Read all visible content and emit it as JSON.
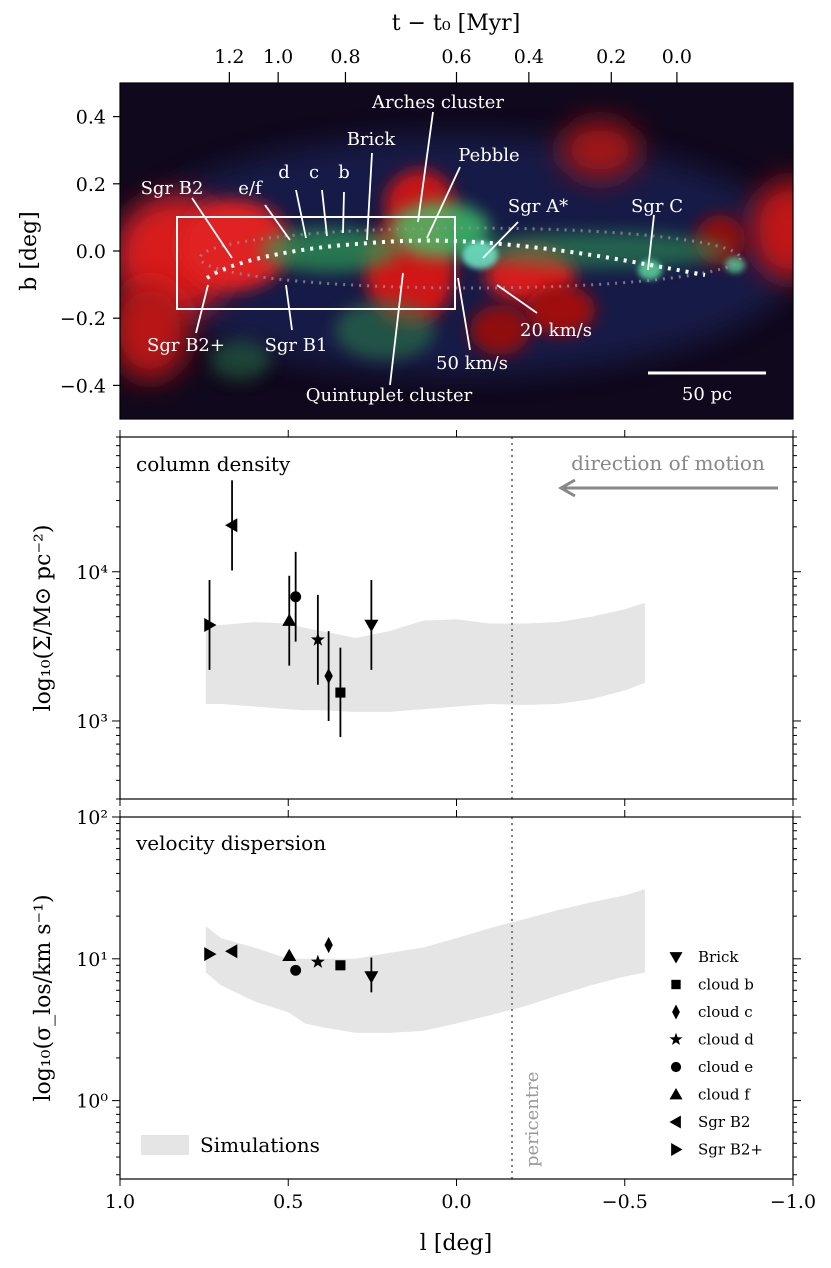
{
  "figure": {
    "top_xlabel": "t − t₀ [Myr]",
    "bottom_xlabel": "l [deg]",
    "top_xticks": [
      "1.2",
      "1.0",
      "0.8",
      "0.6",
      "0.4",
      "0.2",
      "0.0"
    ],
    "top_xtick_l": [
      0.675,
      0.53,
      0.33,
      0.0,
      -0.215,
      -0.46,
      -0.655
    ]
  },
  "image_panel": {
    "ylabel": "b [deg]",
    "yticks": [
      "0.4",
      "0.2",
      "0.0",
      "−0.2",
      "−0.4"
    ],
    "ytick_values": [
      0.4,
      0.2,
      0.0,
      -0.2,
      -0.4
    ],
    "xlim": [
      1.0,
      -1.0
    ],
    "ylim": [
      -0.5,
      0.5
    ],
    "scalebar_label": "50 pc",
    "colors": {
      "red_channel": "#e01818",
      "green_channel": "#3fc86a",
      "blue_channel": "#2a3fa0",
      "background": "#10081c"
    },
    "labels": [
      {
        "text": "Arches cluster"
      },
      {
        "text": "Brick"
      },
      {
        "text": "Pebble"
      },
      {
        "text": "Sgr B2"
      },
      {
        "text": "e/f"
      },
      {
        "text": "d"
      },
      {
        "text": "c"
      },
      {
        "text": "b"
      },
      {
        "text": "Sgr A*"
      },
      {
        "text": "Sgr C"
      },
      {
        "text": "Sgr B2+"
      },
      {
        "text": "Sgr B1"
      },
      {
        "text": "20 km/s"
      },
      {
        "text": "50 km/s"
      },
      {
        "text": "Quintuplet cluster"
      }
    ]
  },
  "chart_data": [
    {
      "type": "scatter",
      "title": "column density",
      "ylabel": "log₁₀(Σ/M⊙ pc⁻²)",
      "xlim": [
        1.0,
        -1.0
      ],
      "ylim": [
        300,
        80000
      ],
      "yscale": "log",
      "yticks": [
        "10⁴",
        "10³"
      ],
      "ytick_values": [
        10000,
        1000
      ],
      "annotation": "direction of motion",
      "pericentre_l": -0.165,
      "series": [
        {
          "name": "Brick",
          "marker": "triangle-down",
          "l": 0.253,
          "value": 4400,
          "err_low": 2200,
          "err_high": 8800
        },
        {
          "name": "cloud b",
          "marker": "square",
          "l": 0.345,
          "value": 1550,
          "err_low": 780,
          "err_high": 3100
        },
        {
          "name": "cloud c",
          "marker": "diamond",
          "l": 0.38,
          "value": 2000,
          "err_low": 1000,
          "err_high": 4000
        },
        {
          "name": "cloud d",
          "marker": "star",
          "l": 0.412,
          "value": 3500,
          "err_low": 1750,
          "err_high": 7000
        },
        {
          "name": "cloud e",
          "marker": "circle",
          "l": 0.478,
          "value": 6800,
          "err_low": 3400,
          "err_high": 13600
        },
        {
          "name": "cloud f",
          "marker": "triangle-up",
          "l": 0.497,
          "value": 4700,
          "err_low": 2350,
          "err_high": 9400
        },
        {
          "name": "Sgr B2",
          "marker": "triangle-left",
          "l": 0.667,
          "value": 20500,
          "err_low": 10200,
          "err_high": 41000
        },
        {
          "name": "Sgr B2+",
          "marker": "triangle-right",
          "l": 0.734,
          "value": 4400,
          "err_low": 2200,
          "err_high": 8800
        }
      ],
      "simulations": {
        "l": [
          0.745,
          0.7,
          0.6,
          0.5,
          0.45,
          0.4,
          0.3,
          0.2,
          0.1,
          0.0,
          -0.1,
          -0.2,
          -0.3,
          -0.4,
          -0.5,
          -0.56
        ],
        "lower": [
          1300,
          1300,
          1250,
          1200,
          1180,
          1180,
          1150,
          1150,
          1200,
          1250,
          1300,
          1280,
          1300,
          1400,
          1600,
          1800
        ],
        "upper": [
          4300,
          4400,
          4600,
          4500,
          4200,
          4000,
          3600,
          4000,
          4700,
          4800,
          4500,
          4500,
          4600,
          5000,
          5600,
          6200
        ]
      }
    },
    {
      "type": "scatter",
      "title": "velocity dispersion",
      "ylabel": "log₁₀(σ_los/km s⁻¹)",
      "xlim": [
        1.0,
        -1.0
      ],
      "ylim": [
        0.28,
        100
      ],
      "yscale": "log",
      "yticks": [
        "10²",
        "10¹",
        "10⁰"
      ],
      "ytick_values": [
        100,
        10,
        1
      ],
      "annotation": "pericentre",
      "pericentre_l": -0.165,
      "series": [
        {
          "name": "Brick",
          "marker": "triangle-down",
          "l": 0.253,
          "value": 7.5,
          "err_low": 5.8,
          "err_high": 10.2
        },
        {
          "name": "cloud b",
          "marker": "square",
          "l": 0.345,
          "value": 9.0
        },
        {
          "name": "cloud c",
          "marker": "diamond",
          "l": 0.38,
          "value": 12.5
        },
        {
          "name": "cloud d",
          "marker": "star",
          "l": 0.412,
          "value": 9.5
        },
        {
          "name": "cloud e",
          "marker": "circle",
          "l": 0.478,
          "value": 8.3
        },
        {
          "name": "cloud f",
          "marker": "triangle-up",
          "l": 0.497,
          "value": 10.5
        },
        {
          "name": "Sgr B2",
          "marker": "triangle-left",
          "l": 0.667,
          "value": 11.3
        },
        {
          "name": "Sgr B2+",
          "marker": "triangle-right",
          "l": 0.734,
          "value": 10.8
        }
      ],
      "simulations": {
        "l": [
          0.745,
          0.7,
          0.6,
          0.5,
          0.45,
          0.4,
          0.3,
          0.2,
          0.1,
          0.0,
          -0.1,
          -0.2,
          -0.3,
          -0.4,
          -0.5,
          -0.56
        ],
        "lower": [
          8.0,
          6.5,
          5.0,
          4.2,
          3.5,
          3.3,
          3.0,
          3.0,
          3.1,
          3.5,
          4.0,
          4.6,
          5.5,
          6.5,
          7.5,
          8.0
        ],
        "upper": [
          17,
          14,
          12,
          10,
          10,
          10,
          10,
          11,
          12,
          14,
          16.5,
          19,
          22,
          25,
          28,
          31
        ]
      },
      "legend": {
        "position": "bottom-right",
        "entries": [
          "Brick",
          "cloud b",
          "cloud c",
          "cloud d",
          "cloud e",
          "cloud f",
          "Sgr B2",
          "Sgr B2+"
        ],
        "simulation_label": "Simulations",
        "simulation_color": "#e5e5e5"
      }
    }
  ]
}
